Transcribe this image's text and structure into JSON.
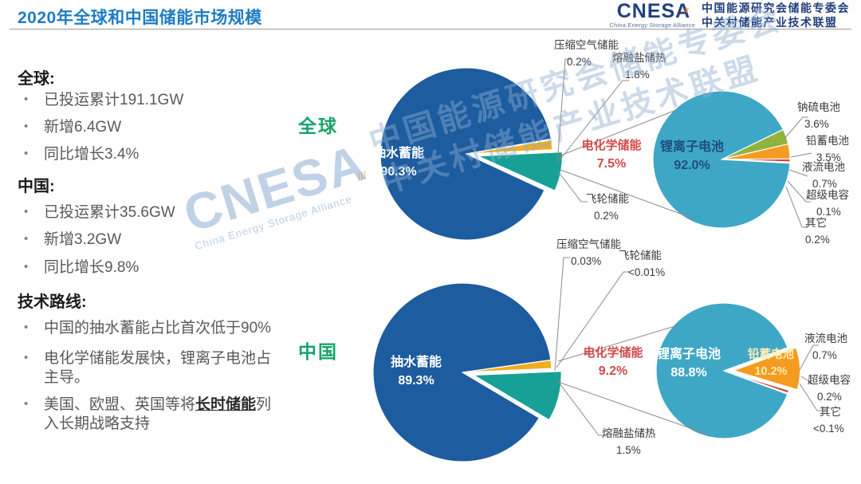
{
  "header": {
    "title": "2020年全球和中国储能市场规模",
    "logo": {
      "acronym": "CNESA",
      "alliance_en": "China Energy Storage Alliance",
      "org_line1": "中国能源研究会储能专委会",
      "org_line2": "中关村储能产业技术联盟"
    }
  },
  "sidebar": {
    "sections": [
      {
        "heading": "全球:",
        "bullets": [
          "已投运累计191.1GW",
          "新增6.4GW",
          "同比增长3.4%"
        ]
      },
      {
        "heading": "中国:",
        "bullets": [
          "已投运累计35.6GW",
          "新增3.2GW",
          "同比增长9.8%"
        ]
      },
      {
        "heading": "技术路线:",
        "bullets": [
          "中国的抽水蓄能占比首次低于90%",
          "电化学储能发展快，锂离子电池占主导。"
        ],
        "bullet3": {
          "prefix": "美国、欧盟、英国等将",
          "emphasis": "长时储能",
          "suffix": "列入长期战略支持"
        }
      }
    ]
  },
  "watermark": {
    "acronym": "CNESA",
    "alliance_en": "China Energy Storage Alliance",
    "line1": "中国能源研究会储能专委会",
    "line2": "中关村储能产业技术联盟"
  },
  "chart_data": [
    {
      "type": "pie",
      "group_label": "全球",
      "unit": "%",
      "main_pie": {
        "slices": [
          {
            "name": "压缩空气储能",
            "value": 0.2,
            "display": "0.2%",
            "color": "#9db9d4"
          },
          {
            "name": "熔融盐储热",
            "value": 1.8,
            "display": "1.8%",
            "color": "#f0ad1e"
          },
          {
            "name": "电化学储能",
            "value": 7.5,
            "display": "7.5%",
            "color": "#17a096"
          },
          {
            "name": "飞轮储能",
            "value": 0.2,
            "display": "0.2%",
            "color": "#9db9d4"
          },
          {
            "name": "抽水蓄能",
            "value": 90.3,
            "display": "90.3%",
            "color": "#1d5c9e"
          }
        ]
      },
      "detail_pie": {
        "parent_slice": "电化学储能",
        "slices": [
          {
            "name": "钠硫电池",
            "value": 3.6,
            "display": "3.6%",
            "color": "#8fb33c"
          },
          {
            "name": "铅蓄电池",
            "value": 3.5,
            "display": "3.5%",
            "color": "#f59b20"
          },
          {
            "name": "液流电池",
            "value": 0.7,
            "display": "0.7%",
            "color": "#cf4436"
          },
          {
            "name": "超级电容",
            "value": 0.1,
            "display": "0.1%",
            "color": "#8c6bae"
          },
          {
            "name": "其它",
            "value": 0.2,
            "display": "0.2%",
            "color": "#bfbfbf"
          },
          {
            "name": "锂离子电池",
            "value": 92.0,
            "display": "92.0%",
            "color": "#3fa7c6"
          }
        ]
      }
    },
    {
      "type": "pie",
      "group_label": "中国",
      "unit": "%",
      "main_pie": {
        "slices": [
          {
            "name": "压缩空气储能",
            "value": 0.03,
            "display": "0.03%",
            "color": "#9db9d4"
          },
          {
            "name": "熔融盐储热",
            "value": 1.5,
            "display": "1.5%",
            "color": "#f0ad1e"
          },
          {
            "name": "电化学储能",
            "value": 9.2,
            "display": "9.2%",
            "color": "#17a096"
          },
          {
            "name": "飞轮储能",
            "value": 0.01,
            "display": "<0.01%",
            "color": "#9db9d4"
          },
          {
            "name": "抽水蓄能",
            "value": 89.3,
            "display": "89.3%",
            "color": "#1d5c9e"
          }
        ]
      },
      "detail_pie": {
        "parent_slice": "电化学储能",
        "slices": [
          {
            "name": "铅蓄电池",
            "value": 10.2,
            "display": "10.2%",
            "color": "#f59b20"
          },
          {
            "name": "液流电池",
            "value": 0.7,
            "display": "0.7%",
            "color": "#cf4436"
          },
          {
            "name": "超级电容",
            "value": 0.2,
            "display": "0.2%",
            "color": "#8c6bae"
          },
          {
            "name": "其它",
            "value": 0.05,
            "display": "<0.1%",
            "color": "#bfbfbf"
          },
          {
            "name": "锂离子电池",
            "value": 88.8,
            "display": "88.8%",
            "color": "#3fa7c6"
          }
        ]
      }
    }
  ]
}
